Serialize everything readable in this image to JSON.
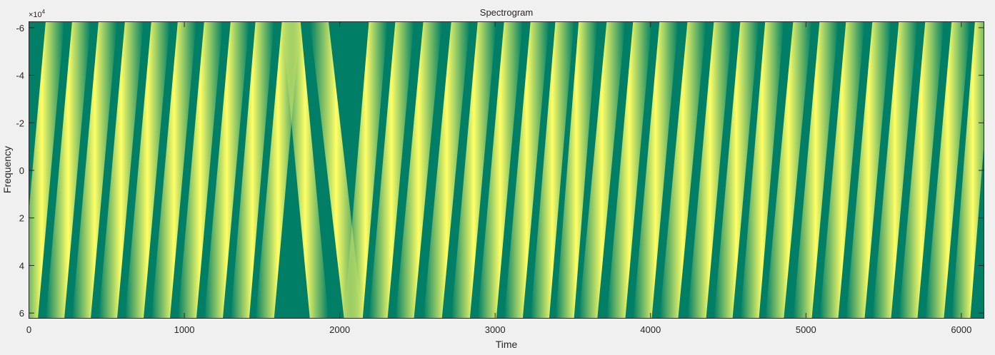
{
  "figure": {
    "background": "#f0f0f0"
  },
  "chart_data": {
    "type": "heatmap",
    "title": "Spectrogram",
    "xlabel": "Time",
    "ylabel": "Frequency",
    "xlim": [
      0,
      6150
    ],
    "ylim": [
      -62500,
      62500
    ],
    "y_direction": "reverse",
    "x_ticks": [
      0,
      1000,
      2000,
      3000,
      4000,
      5000,
      6000
    ],
    "x_tick_labels": [
      "0",
      "1000",
      "2000",
      "3000",
      "4000",
      "5000",
      "6000"
    ],
    "y_ticks": [
      -60000,
      -40000,
      -20000,
      0,
      20000,
      40000,
      60000
    ],
    "y_tick_labels": [
      "-6",
      "-4",
      "-2",
      "0",
      "2",
      "4",
      "6"
    ],
    "y_exponent_label": "×10",
    "y_exponent_power": "4",
    "grid": false,
    "colormap": {
      "low": "#007f66",
      "high": "#ffff66"
    },
    "chirps_up": [
      {
        "start": 0,
        "end": 170
      },
      {
        "start": 170,
        "end": 340
      },
      {
        "start": 340,
        "end": 510
      },
      {
        "start": 510,
        "end": 680
      },
      {
        "start": 680,
        "end": 850
      },
      {
        "start": 850,
        "end": 1020
      },
      {
        "start": 1020,
        "end": 1190
      },
      {
        "start": 1190,
        "end": 1360
      },
      {
        "start": 1360,
        "end": 1520
      },
      {
        "start": 1520,
        "end": 1690
      },
      {
        "start": 2090,
        "end": 2250
      },
      {
        "start": 2250,
        "end": 2420
      },
      {
        "start": 2420,
        "end": 2600
      },
      {
        "start": 2600,
        "end": 2780
      },
      {
        "start": 2780,
        "end": 2950
      },
      {
        "start": 2950,
        "end": 3120
      },
      {
        "start": 3120,
        "end": 3290
      },
      {
        "start": 3290,
        "end": 3450
      },
      {
        "start": 3450,
        "end": 3600
      },
      {
        "start": 3600,
        "end": 3780
      },
      {
        "start": 3780,
        "end": 3950
      },
      {
        "start": 3950,
        "end": 4120
      },
      {
        "start": 4120,
        "end": 4300
      },
      {
        "start": 4300,
        "end": 4470
      },
      {
        "start": 4470,
        "end": 4640
      },
      {
        "start": 4640,
        "end": 4800
      },
      {
        "start": 4800,
        "end": 4980
      },
      {
        "start": 4980,
        "end": 5150
      },
      {
        "start": 5150,
        "end": 5320
      },
      {
        "start": 5320,
        "end": 5490
      },
      {
        "start": 5490,
        "end": 5660
      },
      {
        "start": 5660,
        "end": 5830
      },
      {
        "start": 5830,
        "end": 6000
      },
      {
        "start": 6000,
        "end": 6150
      }
    ],
    "chirps_down": [
      {
        "start": 1690,
        "end": 1870
      },
      {
        "start": 1870,
        "end": 2090
      }
    ]
  }
}
